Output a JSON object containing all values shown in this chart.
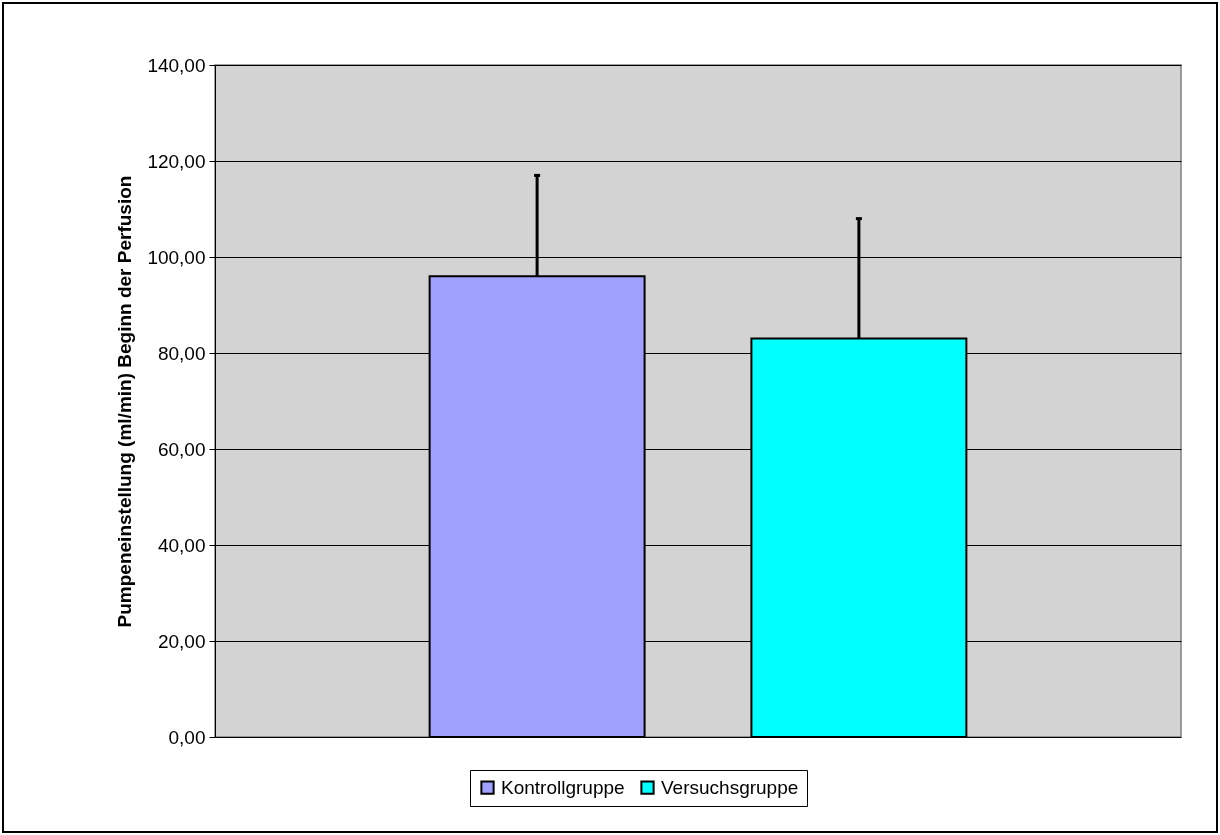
{
  "chart_data": {
    "type": "bar",
    "ylabel": "Pumpeneinstellung (ml/min) Beginn der Perfusion",
    "categories": [
      null
    ],
    "series": [
      {
        "name": "Kontrollgruppe",
        "color": "#a0a0ff",
        "values": [
          96
        ],
        "errors": [
          [
            96,
            117
          ]
        ]
      },
      {
        "name": "Versuchsgruppe",
        "color": "#00ffff",
        "values": [
          83
        ],
        "errors": [
          [
            83,
            108
          ]
        ]
      }
    ],
    "ylim": [
      0,
      140
    ],
    "yticks": [
      {
        "value": 0,
        "label": "0,00"
      },
      {
        "value": 20,
        "label": "20,00"
      },
      {
        "value": 40,
        "label": "40,00"
      },
      {
        "value": 60,
        "label": "60,00"
      },
      {
        "value": 80,
        "label": "80,00"
      },
      {
        "value": 100,
        "label": "100,00"
      },
      {
        "value": 120,
        "label": "120,00"
      },
      {
        "value": 140,
        "label": "140,00"
      }
    ],
    "grid": "y",
    "legend": "bottom"
  }
}
